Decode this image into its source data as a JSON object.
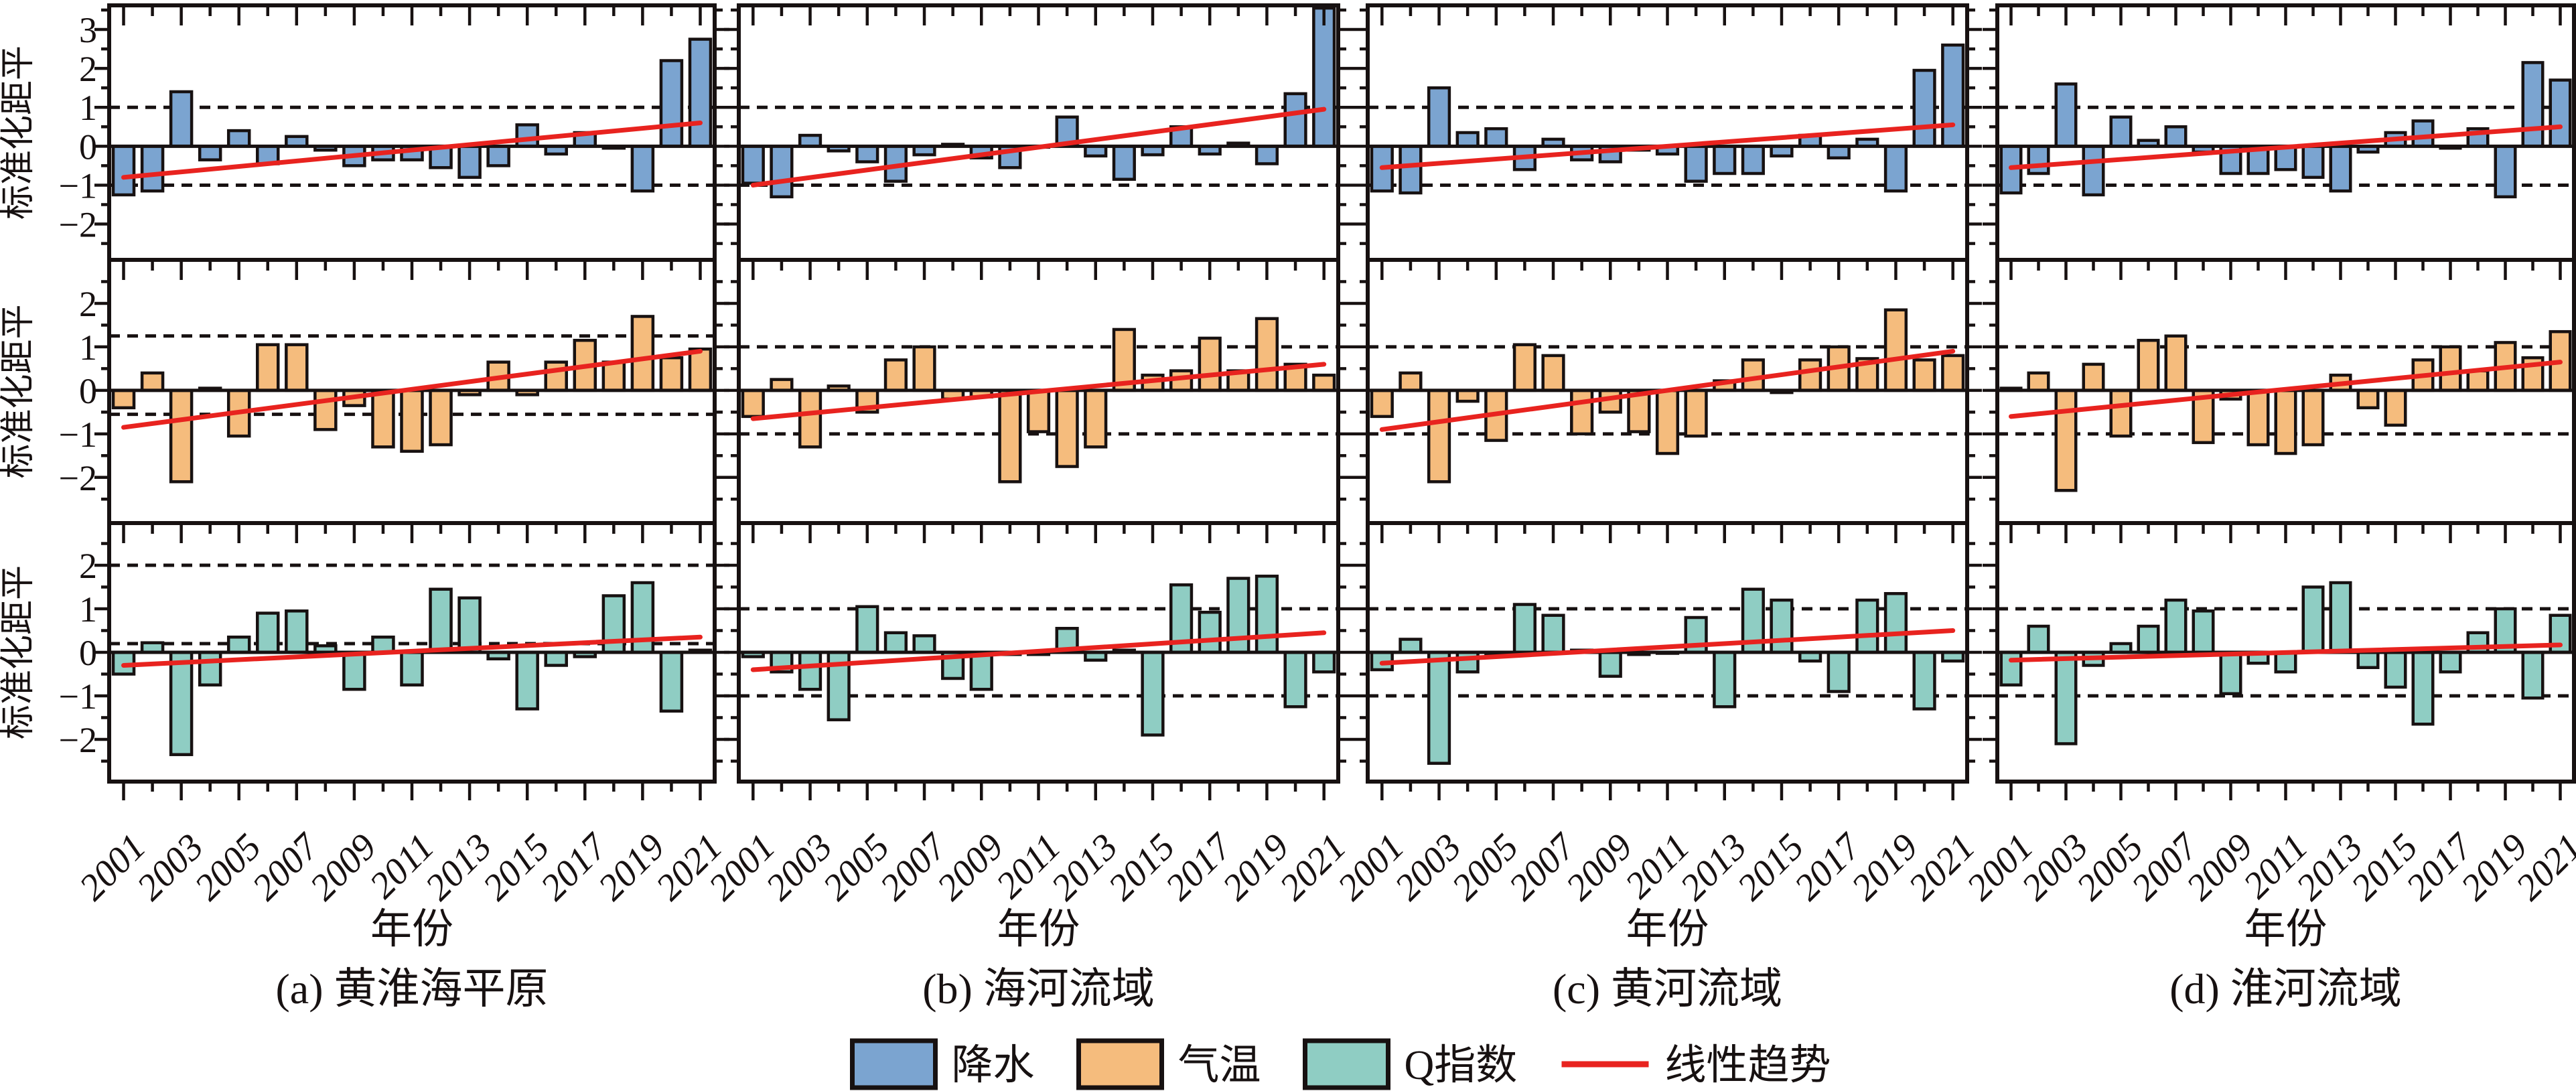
{
  "figure": {
    "y_axis_title": "标准化距平",
    "x_axis_title": "年份",
    "background_color": "#ffffff",
    "axis_color": "#171111",
    "trend_color": "#E8231F"
  },
  "legend": {
    "items": [
      {
        "label": "降水",
        "color": "#7BA4D0",
        "type": "swatch"
      },
      {
        "label": "气温",
        "color": "#F5BC7D",
        "type": "swatch"
      },
      {
        "label": "Q指数",
        "color": "#8FCDC3",
        "type": "swatch"
      },
      {
        "label": "线性趋势",
        "color": "#E8231F",
        "type": "line"
      }
    ]
  },
  "chart_data": {
    "type": "bar",
    "x": [
      2001,
      2002,
      2003,
      2004,
      2005,
      2006,
      2007,
      2008,
      2009,
      2010,
      2011,
      2012,
      2013,
      2014,
      2015,
      2016,
      2017,
      2018,
      2019,
      2020,
      2021
    ],
    "x_tick_labels": [
      "2001",
      "2003",
      "2005",
      "2007",
      "2009",
      "2011",
      "2013",
      "2015",
      "2017",
      "2019",
      "2021"
    ],
    "rows": [
      {
        "series_name": "降水",
        "key": "precipitation",
        "color": "#7BA4D0",
        "ylim": [
          -2.92,
          3.62
        ],
        "yticks": [
          3,
          2,
          1,
          0,
          -1,
          -2
        ],
        "ytick_labels": [
          "3",
          "2",
          "1",
          "0",
          "−1",
          "−2"
        ],
        "minor_yticks": [
          3.5,
          2.5,
          1.5,
          0.5,
          -0.5,
          -1.5,
          -2.5
        ]
      },
      {
        "series_name": "气温",
        "key": "temperature",
        "color": "#F5BC7D",
        "ylim": [
          -3.05,
          3.0
        ],
        "yticks": [
          2,
          1,
          0,
          -1,
          -2
        ],
        "ytick_labels": [
          "2",
          "1",
          "0",
          "−1",
          "−2"
        ],
        "minor_yticks": [
          2.5,
          1.5,
          0.5,
          -0.5,
          -1.5,
          -2.5
        ]
      },
      {
        "series_name": "Q指数",
        "key": "q_index",
        "color": "#8FCDC3",
        "ylim": [
          -2.97,
          2.97
        ],
        "yticks": [
          2,
          1,
          0,
          -1,
          -2
        ],
        "ytick_labels": [
          "2",
          "1",
          "0",
          "−1",
          "−2"
        ],
        "minor_yticks": [
          2.5,
          1.5,
          0.5,
          -0.5,
          -1.5,
          -2.5
        ]
      }
    ],
    "panels": [
      {
        "id": "a",
        "caption": "(a) 黄淮海平原",
        "precipitation": {
          "values": [
            -1.25,
            -1.15,
            1.4,
            -0.35,
            0.4,
            -0.45,
            0.25,
            -0.1,
            -0.5,
            -0.35,
            -0.35,
            -0.55,
            -0.8,
            -0.5,
            0.55,
            -0.2,
            0.35,
            -0.05,
            -1.15,
            2.2,
            2.75
          ],
          "trend_line": [
            -0.8,
            0.6
          ],
          "ref_lines": [
            1,
            -1
          ]
        },
        "temperature": {
          "values": [
            -0.4,
            0.4,
            -2.1,
            0.05,
            -1.05,
            1.05,
            1.05,
            -0.9,
            -0.35,
            -1.3,
            -1.4,
            -1.25,
            -0.1,
            0.65,
            -0.1,
            0.65,
            1.15,
            0.65,
            1.7,
            0.75,
            0.95
          ],
          "trend_line": [
            -0.85,
            0.9
          ],
          "ref_lines": [
            1.25,
            -0.55
          ]
        },
        "q_index": {
          "values": [
            -0.5,
            0.22,
            -2.35,
            -0.75,
            0.35,
            0.9,
            0.95,
            0.15,
            -0.85,
            0.35,
            -0.75,
            1.45,
            1.25,
            -0.15,
            -1.3,
            -0.3,
            -0.1,
            1.3,
            1.6,
            -1.35,
            0.05
          ],
          "trend_line": [
            -0.3,
            0.35
          ],
          "ref_lines": [
            2.0,
            0.2
          ]
        }
      },
      {
        "id": "b",
        "caption": "(b) 海河流域",
        "precipitation": {
          "values": [
            -0.95,
            -1.3,
            0.28,
            -0.12,
            -0.4,
            -0.9,
            -0.22,
            0.05,
            -0.3,
            -0.55,
            0.0,
            0.75,
            -0.25,
            -0.85,
            -0.22,
            0.5,
            -0.2,
            0.08,
            -0.45,
            1.35,
            3.55
          ],
          "trend_line": [
            -1.0,
            0.95
          ],
          "ref_lines": [
            1,
            -1
          ]
        },
        "temperature": {
          "values": [
            -0.6,
            0.25,
            -1.3,
            0.1,
            -0.5,
            0.7,
            1.0,
            -0.2,
            -0.15,
            -2.1,
            -0.95,
            -1.75,
            -1.3,
            1.4,
            0.35,
            0.45,
            1.2,
            0.45,
            1.65,
            0.6,
            0.35
          ],
          "trend_line": [
            -0.65,
            0.6
          ],
          "ref_lines": [
            1,
            -1
          ]
        },
        "q_index": {
          "values": [
            -0.1,
            -0.45,
            -0.85,
            -1.55,
            1.05,
            0.45,
            0.38,
            -0.6,
            -0.85,
            -0.05,
            -0.05,
            0.55,
            -0.18,
            0.05,
            -1.9,
            1.55,
            0.92,
            1.7,
            1.75,
            -1.25,
            -0.45
          ],
          "trend_line": [
            -0.4,
            0.45
          ],
          "ref_lines": [
            1,
            -1
          ]
        }
      },
      {
        "id": "c",
        "caption": "(c) 黄河流域",
        "precipitation": {
          "values": [
            -1.15,
            -1.2,
            1.5,
            0.35,
            0.45,
            -0.6,
            0.18,
            -0.35,
            -0.4,
            -0.1,
            -0.2,
            -0.9,
            -0.7,
            -0.7,
            -0.25,
            0.28,
            -0.3,
            0.18,
            -1.15,
            1.95,
            2.6
          ],
          "trend_line": [
            -0.55,
            0.55
          ],
          "ref_lines": [
            1,
            -1
          ]
        },
        "temperature": {
          "values": [
            -0.6,
            0.4,
            -2.1,
            -0.25,
            -1.15,
            1.05,
            0.8,
            -1.0,
            -0.5,
            -0.95,
            -1.45,
            -1.05,
            0.22,
            0.7,
            -0.05,
            0.7,
            1.0,
            0.73,
            1.85,
            0.7,
            0.8
          ],
          "trend_line": [
            -0.9,
            0.9
          ],
          "ref_lines": [
            1,
            -1
          ]
        },
        "q_index": {
          "values": [
            -0.4,
            0.3,
            -2.55,
            -0.45,
            -0.05,
            1.1,
            0.85,
            0.05,
            -0.55,
            -0.05,
            0.0,
            0.8,
            -1.25,
            1.45,
            1.2,
            -0.2,
            -0.9,
            1.2,
            1.35,
            -1.3,
            -0.2
          ],
          "trend_line": [
            -0.25,
            0.5
          ],
          "ref_lines": [
            1,
            -1
          ]
        }
      },
      {
        "id": "d",
        "caption": "(d) 淮河流域",
        "precipitation": {
          "values": [
            -1.2,
            -0.7,
            1.6,
            -1.25,
            0.75,
            0.15,
            0.5,
            -0.15,
            -0.7,
            -0.7,
            -0.6,
            -0.8,
            -1.15,
            -0.15,
            0.35,
            0.65,
            -0.05,
            0.45,
            -1.3,
            2.15,
            1.7
          ],
          "trend_line": [
            -0.55,
            0.5
          ],
          "ref_lines": [
            1,
            -1
          ]
        },
        "temperature": {
          "values": [
            0.05,
            0.4,
            -2.3,
            0.6,
            -1.05,
            1.15,
            1.25,
            -1.2,
            -0.2,
            -1.25,
            -1.45,
            -1.25,
            0.35,
            -0.4,
            -0.8,
            0.7,
            1.0,
            0.45,
            1.1,
            0.75,
            1.35
          ],
          "trend_line": [
            -0.6,
            0.65
          ],
          "ref_lines": [
            1,
            -1
          ]
        },
        "q_index": {
          "values": [
            -0.75,
            0.6,
            -2.1,
            -0.3,
            0.2,
            0.6,
            1.2,
            0.95,
            -0.95,
            -0.25,
            -0.45,
            1.5,
            1.6,
            -0.35,
            -0.8,
            -1.65,
            -0.45,
            0.45,
            1.0,
            -1.05,
            0.85
          ],
          "trend_line": [
            -0.18,
            0.17
          ],
          "ref_lines": [
            1,
            -1
          ]
        }
      }
    ]
  }
}
